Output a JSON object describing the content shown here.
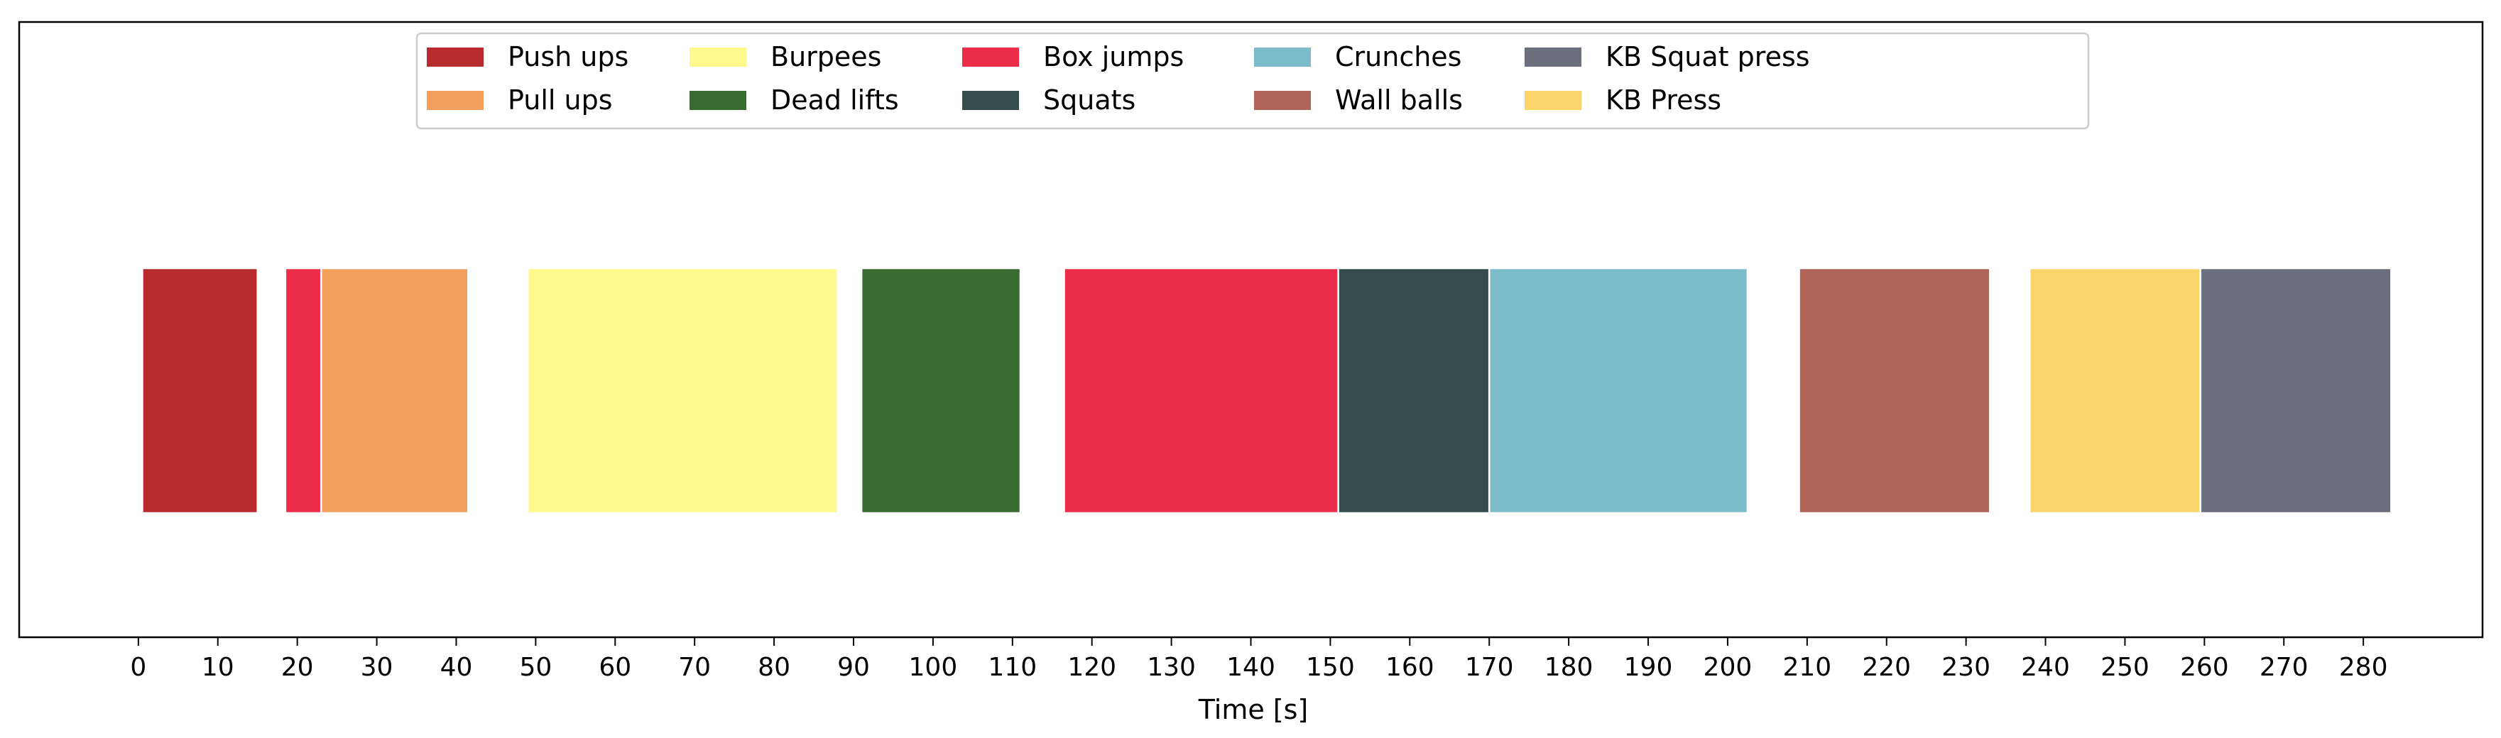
{
  "chart_data": {
    "type": "broken-barh",
    "title": "",
    "xlabel": "Time [s]",
    "ylabel": "",
    "xlim": [
      -15,
      295
    ],
    "xticks": [
      0,
      10,
      20,
      30,
      40,
      50,
      60,
      70,
      80,
      90,
      100,
      110,
      120,
      130,
      140,
      150,
      160,
      170,
      180,
      190,
      200,
      210,
      220,
      230,
      240,
      250,
      260,
      270,
      280
    ],
    "grid": false,
    "legend_placement": "upper-center",
    "legend_columns": 6,
    "segments": [
      {
        "name": "Push ups",
        "start": 0.5,
        "end": 15,
        "color": "#b82b2d"
      },
      {
        "name": "Box jumps",
        "start": 18.5,
        "end": 23,
        "color": "#ec2d49"
      },
      {
        "name": "Pull ups",
        "start": 23,
        "end": 41.5,
        "color": "#f4a05c"
      },
      {
        "name": "Burpees",
        "start": 49,
        "end": 88,
        "color": "#fef98c"
      },
      {
        "name": "Dead lifts",
        "start": 91,
        "end": 111,
        "color": "#386b30"
      },
      {
        "name": "Box jumps",
        "start": 116.5,
        "end": 151,
        "color": "#ec2d49"
      },
      {
        "name": "Squats",
        "start": 151,
        "end": 170,
        "color": "#324d4b"
      },
      {
        "name": "Crunches",
        "start": 170,
        "end": 202.5,
        "color": "#7bbbca"
      },
      {
        "name": "Wall balls",
        "start": 209,
        "end": 233,
        "color": "#b16558"
      },
      {
        "name": "KB Press",
        "start": 238,
        "end": 259.5,
        "color": "#fad569"
      },
      {
        "name": "KB Squat press",
        "start": 259.5,
        "end": 283.5,
        "color": "#6b6e7d"
      }
    ],
    "legend": [
      {
        "name": "Push ups",
        "color": "#b82b2d"
      },
      {
        "name": "Pull ups",
        "color": "#f4a05c"
      },
      {
        "name": "Burpees",
        "color": "#fef98c"
      },
      {
        "name": "Dead lifts",
        "color": "#386b30"
      },
      {
        "name": "Box jumps",
        "color": "#ec2d49"
      },
      {
        "name": "Squats",
        "color": "#324d4b"
      },
      {
        "name": "Crunches",
        "color": "#7bbbca"
      },
      {
        "name": "Wall balls",
        "color": "#b16558"
      },
      {
        "name": "KB Squat press",
        "color": "#6b6e7d"
      },
      {
        "name": "KB Press",
        "color": "#fad569"
      }
    ]
  }
}
